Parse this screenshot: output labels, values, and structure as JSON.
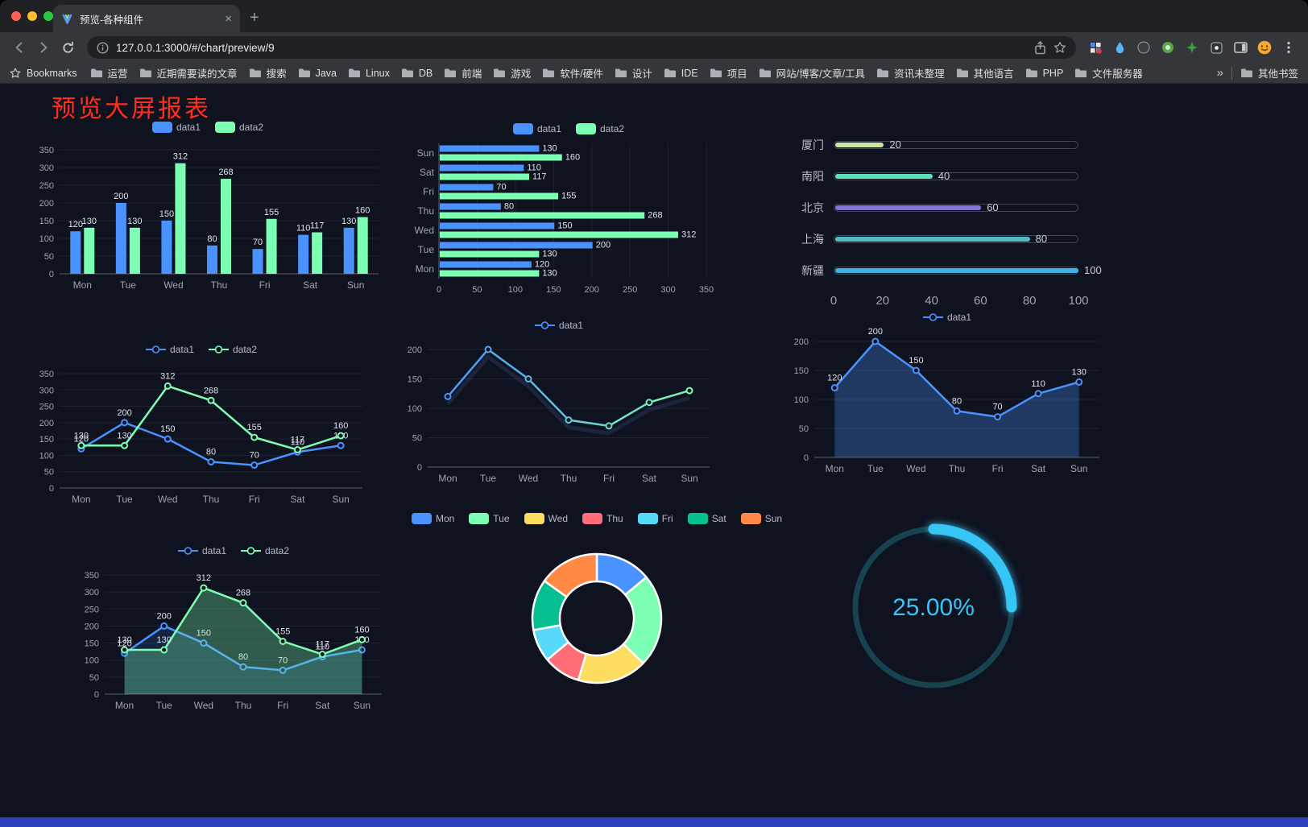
{
  "browser": {
    "tab": {
      "title": "预览-各种组件"
    },
    "url": "127.0.0.1:3000/#/chart/preview/9",
    "bookmarks_bar": {
      "label": "Bookmarks",
      "items": [
        "运营",
        "近期需要读的文章",
        "搜索",
        "Java",
        "Linux",
        "DB",
        "前端",
        "游戏",
        "软件/硬件",
        "设计",
        "IDE",
        "项目",
        "网站/博客/文章/工具",
        "资讯未整理",
        "其他语言",
        "PHP",
        "文件服务器"
      ],
      "overflow": "»",
      "other": "其他书签"
    }
  },
  "page": {
    "title": "预览大屏报表"
  },
  "colors": {
    "page_bg": "#0f1320",
    "accent_red": "#ff2e1f",
    "footer_blue": "#2b3fbf",
    "axis_text": "#a0a4b0",
    "label_text": "#e0e3ea",
    "legend_text": "#b9b8ce",
    "grid": "rgba(255,255,255,0.07)",
    "axis_line": "#5b6069"
  },
  "chart_data": [
    {
      "id": "bar-grouped",
      "type": "bar",
      "categories": [
        "Mon",
        "Tue",
        "Wed",
        "Thu",
        "Fri",
        "Sat",
        "Sun"
      ],
      "series": [
        {
          "name": "data1",
          "color": "#4992ff",
          "values": [
            120,
            200,
            150,
            80,
            70,
            110,
            130
          ]
        },
        {
          "name": "data2",
          "color": "#7cffb2",
          "values": [
            130,
            130,
            312,
            268,
            155,
            117,
            160
          ]
        }
      ],
      "ylim": [
        0,
        350
      ],
      "yticks": [
        0,
        50,
        100,
        150,
        200,
        250,
        300,
        350
      ],
      "value_labels": true,
      "legend_position": "top"
    },
    {
      "id": "bar-horizontal",
      "type": "bar-horizontal",
      "categories": [
        "Mon",
        "Tue",
        "Wed",
        "Thu",
        "Fri",
        "Sat",
        "Sun"
      ],
      "series": [
        {
          "name": "data1",
          "color": "#4992ff",
          "values": [
            120,
            200,
            150,
            80,
            70,
            110,
            130
          ]
        },
        {
          "name": "data2",
          "color": "#7cffb2",
          "values": [
            130,
            130,
            312,
            268,
            155,
            117,
            160
          ]
        }
      ],
      "xlim": [
        0,
        350
      ],
      "xticks": [
        0,
        50,
        100,
        150,
        200,
        250,
        300,
        350
      ],
      "value_labels": true,
      "legend_position": "top"
    },
    {
      "id": "city-progress",
      "type": "progress",
      "categories": [
        "厦门",
        "南阳",
        "北京",
        "上海",
        "新疆"
      ],
      "values": [
        20,
        40,
        60,
        80,
        100
      ],
      "colors": [
        "#cbe7a2",
        "#5fe0b6",
        "#8077d8",
        "#4fbdc6",
        "#3fb1e3"
      ],
      "xlim": [
        0,
        100
      ],
      "xticks": [
        0,
        20,
        40,
        60,
        80,
        100
      ]
    },
    {
      "id": "line-two",
      "type": "line",
      "categories": [
        "Mon",
        "Tue",
        "Wed",
        "Thu",
        "Fri",
        "Sat",
        "Sun"
      ],
      "series": [
        {
          "name": "data1",
          "color": "#4992ff",
          "values": [
            120,
            200,
            150,
            80,
            70,
            110,
            130
          ],
          "labels": true
        },
        {
          "name": "data2",
          "color": "#7cffb2",
          "values": [
            130,
            130,
            312,
            268,
            155,
            117,
            160
          ],
          "labels": true
        }
      ],
      "ylim": [
        0,
        350
      ],
      "yticks": [
        0,
        50,
        100,
        150,
        200,
        250,
        300,
        350
      ],
      "legend_position": "top"
    },
    {
      "id": "line-gradient",
      "type": "line",
      "shadow": true,
      "categories": [
        "Mon",
        "Tue",
        "Wed",
        "Thu",
        "Fri",
        "Sat",
        "Sun"
      ],
      "series": [
        {
          "name": "data1",
          "color": "#4992ff",
          "gradient": [
            "#4992ff",
            "#7cffb2"
          ],
          "values": [
            120,
            200,
            150,
            80,
            70,
            110,
            130
          ]
        }
      ],
      "ylim": [
        0,
        200
      ],
      "yticks": [
        0,
        50,
        100,
        150,
        200
      ],
      "legend_position": "top"
    },
    {
      "id": "line-area",
      "type": "line",
      "categories": [
        "Mon",
        "Tue",
        "Wed",
        "Thu",
        "Fri",
        "Sat",
        "Sun"
      ],
      "series": [
        {
          "name": "data1",
          "color": "#4992ff",
          "values": [
            120,
            200,
            150,
            80,
            70,
            110,
            130
          ],
          "labels": true,
          "area": true,
          "area_opacity": 0.3
        }
      ],
      "ylim": [
        0,
        200
      ],
      "yticks": [
        0,
        50,
        100,
        150,
        200
      ],
      "legend_position": "top"
    },
    {
      "id": "line-two-area",
      "type": "line",
      "categories": [
        "Mon",
        "Tue",
        "Wed",
        "Thu",
        "Fri",
        "Sat",
        "Sun"
      ],
      "series": [
        {
          "name": "data1",
          "color": "#4992ff",
          "values": [
            120,
            200,
            150,
            80,
            70,
            110,
            130
          ],
          "labels": true,
          "area": true,
          "area_opacity": 0.14
        },
        {
          "name": "data2",
          "color": "#7cffb2",
          "values": [
            130,
            130,
            312,
            268,
            155,
            117,
            160
          ],
          "labels": true,
          "area": true,
          "area_opacity": 0.3
        }
      ],
      "ylim": [
        0,
        350
      ],
      "yticks": [
        0,
        50,
        100,
        150,
        200,
        250,
        300,
        350
      ],
      "legend_position": "top"
    },
    {
      "id": "week-donut",
      "type": "pie",
      "categories": [
        "Mon",
        "Tue",
        "Wed",
        "Thu",
        "Fri",
        "Sat",
        "Sun"
      ],
      "values": [
        120,
        200,
        150,
        80,
        70,
        110,
        130
      ],
      "colors": [
        "#4992ff",
        "#7cffb2",
        "#fddd60",
        "#ff6e76",
        "#58d9f9",
        "#05c091",
        "#ff8a45"
      ],
      "inner_radius": 46,
      "outer_radius": 80,
      "legend_position": "top"
    },
    {
      "id": "percent-gauge",
      "type": "gauge",
      "value": 25,
      "label": "25.00%",
      "color": "#37c5f6",
      "track_color": "#17424f"
    }
  ]
}
